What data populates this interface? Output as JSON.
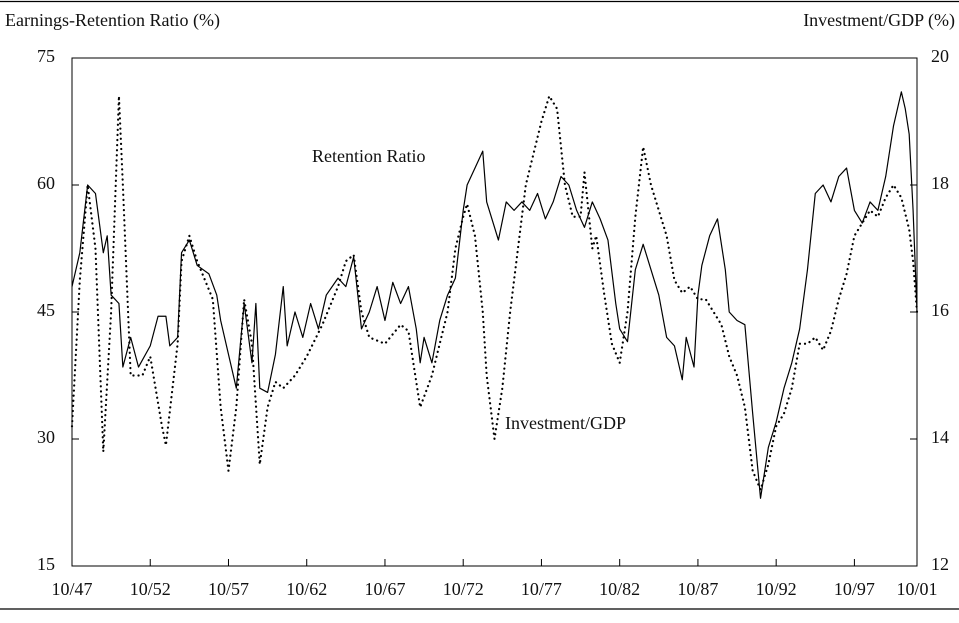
{
  "chart_data": {
    "type": "line",
    "y_label": "Earnings-Retention Ratio (%)",
    "y2_label": "Investment/GDP (%)",
    "xlim": [
      "1947-10",
      "2001-10"
    ],
    "xticks": [
      {
        "value": "1947-10",
        "label": "10/47"
      },
      {
        "value": "1952-10",
        "label": "10/52"
      },
      {
        "value": "1957-10",
        "label": "10/57"
      },
      {
        "value": "1962-10",
        "label": "10/62"
      },
      {
        "value": "1967-10",
        "label": "10/67"
      },
      {
        "value": "1972-10",
        "label": "10/72"
      },
      {
        "value": "1977-10",
        "label": "10/77"
      },
      {
        "value": "1982-10",
        "label": "10/82"
      },
      {
        "value": "1987-10",
        "label": "10/87"
      },
      {
        "value": "1992-10",
        "label": "10/92"
      },
      {
        "value": "1997-10",
        "label": "10/97"
      },
      {
        "value": "2001-10",
        "label": "10/01"
      }
    ],
    "ylim": [
      15,
      75
    ],
    "yticks": [
      15,
      30,
      45,
      60,
      75
    ],
    "y2lim": [
      12,
      20
    ],
    "y2ticks": [
      12,
      14,
      16,
      18,
      20
    ],
    "series": [
      {
        "name": "Retention Ratio",
        "color": "#000000",
        "style": "solid",
        "x": [
          "1947-10",
          "1948-04",
          "1948-10",
          "1949-04",
          "1949-10",
          "1950-01",
          "1950-04",
          "1950-10",
          "1951-01",
          "1951-07",
          "1952-01",
          "1952-10",
          "1953-04",
          "1953-10",
          "1954-01",
          "1954-07",
          "1954-10",
          "1955-04",
          "1955-10",
          "1956-07",
          "1957-01",
          "1957-04",
          "1957-10",
          "1958-04",
          "1958-10",
          "1959-04",
          "1959-07",
          "1959-10",
          "1960-04",
          "1960-10",
          "1961-04",
          "1961-07",
          "1962-01",
          "1962-07",
          "1963-01",
          "1963-07",
          "1964-01",
          "1964-10",
          "1965-04",
          "1965-10",
          "1966-04",
          "1966-10",
          "1967-04",
          "1967-10",
          "1968-04",
          "1968-10",
          "1969-04",
          "1969-10",
          "1970-01",
          "1970-04",
          "1970-10",
          "1971-04",
          "1971-10",
          "1972-04",
          "1972-10",
          "1973-01",
          "1973-07",
          "1974-01",
          "1974-04",
          "1974-10",
          "1975-01",
          "1975-07",
          "1976-01",
          "1976-07",
          "1977-01",
          "1977-07",
          "1978-01",
          "1978-07",
          "1979-01",
          "1979-07",
          "1980-01",
          "1980-07",
          "1981-01",
          "1981-07",
          "1982-01",
          "1982-07",
          "1982-10",
          "1983-04",
          "1983-10",
          "1984-04",
          "1984-10",
          "1985-04",
          "1985-10",
          "1986-04",
          "1986-10",
          "1987-01",
          "1987-07",
          "1987-10",
          "1988-01",
          "1988-07",
          "1989-01",
          "1989-07",
          "1989-10",
          "1990-04",
          "1990-10",
          "1991-04",
          "1991-10",
          "1992-04",
          "1992-10",
          "1993-04",
          "1993-10",
          "1994-04",
          "1994-10",
          "1995-04",
          "1995-10",
          "1996-04",
          "1996-10",
          "1997-04",
          "1997-10",
          "1998-04",
          "1998-10",
          "1999-04",
          "1999-10",
          "2000-04",
          "2000-10",
          "2001-01",
          "2001-04",
          "2001-07",
          "2001-10"
        ],
        "values": [
          48,
          52,
          60,
          59,
          52,
          54,
          47,
          46,
          38.5,
          42,
          38.5,
          41,
          44.5,
          44.5,
          41,
          42,
          52,
          53.5,
          50.5,
          49.5,
          47,
          44,
          40,
          36,
          46,
          39,
          46,
          36,
          35.5,
          40,
          48,
          41,
          45,
          42,
          46,
          43,
          47,
          49,
          48,
          51.5,
          43,
          45,
          48,
          44,
          48.5,
          46,
          48,
          43,
          39,
          42,
          39,
          44,
          47,
          49,
          57,
          60,
          62,
          64,
          58,
          55,
          53.5,
          58,
          57,
          58,
          57,
          59,
          56,
          58,
          61,
          60,
          57,
          55,
          58,
          56,
          53.5,
          46,
          43,
          41.5,
          50,
          53,
          50,
          47,
          42,
          41,
          37,
          42,
          38.5,
          47,
          50.5,
          54,
          56,
          50,
          45,
          44,
          43.5,
          33,
          23,
          29,
          32,
          36,
          39,
          43,
          50,
          59,
          60,
          58,
          61,
          62,
          57,
          55.5,
          58,
          57,
          61,
          67,
          71,
          69,
          66,
          57,
          45
        ]
      },
      {
        "name": "Investment/GDP",
        "color": "#000000",
        "style": "dotted",
        "axis": "y2",
        "x": [
          "1947-10",
          "1948-04",
          "1948-10",
          "1949-04",
          "1949-10",
          "1950-04",
          "1950-10",
          "1951-01",
          "1951-07",
          "1952-04",
          "1952-10",
          "1953-07",
          "1953-10",
          "1954-07",
          "1954-10",
          "1955-04",
          "1955-10",
          "1956-10",
          "1957-04",
          "1957-10",
          "1958-04",
          "1958-10",
          "1959-04",
          "1959-10",
          "1960-04",
          "1960-10",
          "1961-04",
          "1962-01",
          "1962-10",
          "1963-10",
          "1964-10",
          "1965-04",
          "1965-10",
          "1966-04",
          "1966-10",
          "1967-10",
          "1968-10",
          "1969-04",
          "1969-10",
          "1970-01",
          "1970-10",
          "1971-04",
          "1971-10",
          "1972-04",
          "1972-10",
          "1973-01",
          "1973-07",
          "1974-01",
          "1974-04",
          "1974-10",
          "1975-04",
          "1975-10",
          "1976-04",
          "1976-10",
          "1977-04",
          "1977-10",
          "1978-04",
          "1978-10",
          "1979-04",
          "1979-10",
          "1980-04",
          "1980-07",
          "1981-01",
          "1981-04",
          "1981-10",
          "1982-04",
          "1982-10",
          "1983-04",
          "1983-10",
          "1984-04",
          "1984-10",
          "1985-04",
          "1985-10",
          "1986-04",
          "1986-10",
          "1987-04",
          "1987-10",
          "1988-04",
          "1988-10",
          "1989-04",
          "1989-10",
          "1990-04",
          "1990-10",
          "1991-04",
          "1991-10",
          "1992-04",
          "1992-10",
          "1993-04",
          "1993-10",
          "1994-04",
          "1994-10",
          "1995-04",
          "1995-10",
          "1996-04",
          "1996-10",
          "1997-04",
          "1997-10",
          "1998-04",
          "1998-10",
          "1999-04",
          "1999-10",
          "2000-04",
          "2000-10",
          "2001-04",
          "2001-07",
          "2001-10"
        ],
        "values": [
          14.2,
          16.5,
          18.0,
          17.0,
          13.8,
          16.0,
          19.4,
          18.0,
          15.0,
          15.0,
          15.3,
          14.2,
          13.9,
          15.5,
          16.8,
          17.2,
          16.8,
          16.2,
          14.5,
          13.5,
          14.5,
          16.2,
          15.5,
          13.6,
          14.5,
          14.9,
          14.8,
          15.0,
          15.3,
          15.8,
          16.4,
          16.8,
          16.9,
          16.0,
          15.6,
          15.5,
          15.8,
          15.7,
          14.9,
          14.5,
          15.0,
          15.5,
          16.0,
          17.0,
          17.5,
          17.7,
          17.2,
          16.0,
          15.0,
          14.0,
          14.8,
          16.0,
          17.0,
          18.0,
          18.5,
          19.0,
          19.4,
          19.2,
          18.0,
          17.5,
          17.5,
          18.2,
          17.0,
          17.2,
          16.3,
          15.5,
          15.2,
          16.0,
          17.5,
          18.6,
          18.0,
          17.6,
          17.2,
          16.5,
          16.3,
          16.4,
          16.2,
          16.2,
          16.0,
          15.8,
          15.3,
          15.0,
          14.5,
          13.5,
          13.2,
          13.6,
          14.2,
          14.4,
          14.8,
          15.5,
          15.5,
          15.6,
          15.4,
          15.7,
          16.2,
          16.6,
          17.2,
          17.4,
          17.6,
          17.5,
          17.8,
          18.0,
          17.8,
          17.3,
          16.8,
          16.0
        ]
      }
    ]
  }
}
